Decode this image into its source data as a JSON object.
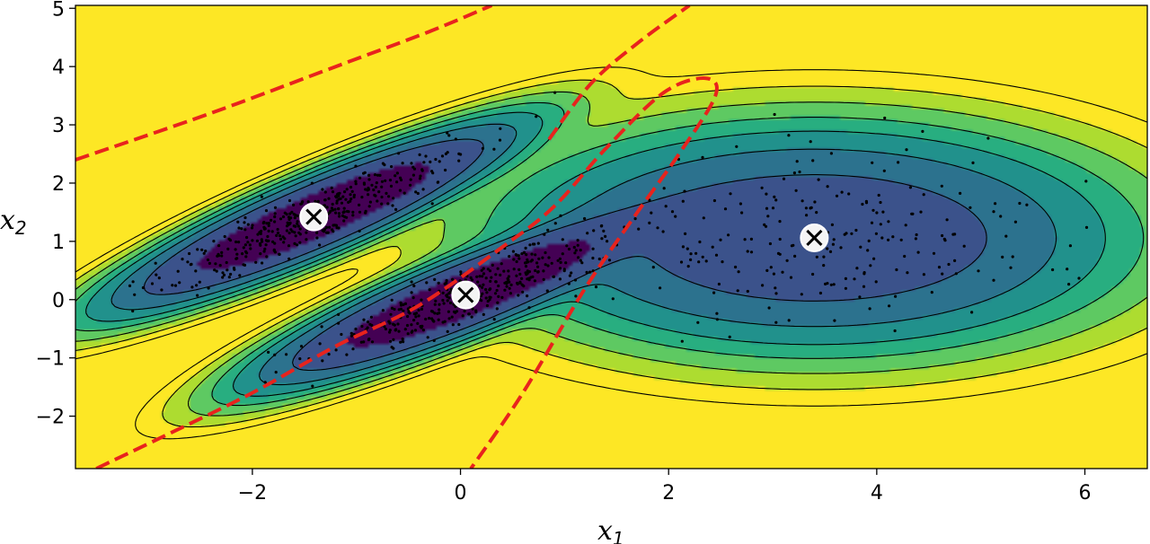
{
  "chart_data": {
    "type": "contour",
    "title": "",
    "xlabel": "x",
    "xlabel_sub": "1",
    "ylabel": "x",
    "ylabel_sub": "2",
    "xlim": [
      -3.7,
      6.6
    ],
    "ylim": [
      -2.9,
      5.05
    ],
    "x_ticks": [
      {
        "value": -2,
        "label": "−2"
      },
      {
        "value": 0,
        "label": "0"
      },
      {
        "value": 2,
        "label": "2"
      },
      {
        "value": 4,
        "label": "4"
      },
      {
        "value": 6,
        "label": "6"
      }
    ],
    "y_ticks": [
      {
        "value": -2,
        "label": "−2"
      },
      {
        "value": -1,
        "label": "−1"
      },
      {
        "value": 0,
        "label": "0"
      },
      {
        "value": 1,
        "label": "1"
      },
      {
        "value": 2,
        "label": "2"
      },
      {
        "value": 3,
        "label": "3"
      },
      {
        "value": 4,
        "label": "4"
      },
      {
        "value": 5,
        "label": "5"
      }
    ],
    "grid": false,
    "colormap": [
      "#440154",
      "#3b528b",
      "#2c728e",
      "#21918c",
      "#28ae80",
      "#5ec962",
      "#addc30",
      "#fde725"
    ],
    "boundary_color": "#e8231d",
    "components": [
      {
        "name": "",
        "mean": [
          -1.41,
          1.42
        ],
        "std": [
          0.9,
          0.2
        ],
        "angle_deg": 38.7,
        "n_points": 390
      },
      {
        "name": "",
        "mean": [
          0.05,
          0.08
        ],
        "std": [
          0.9,
          0.2
        ],
        "angle_deg": 37.1,
        "n_points": 390
      },
      {
        "name": "",
        "mean": [
          3.4,
          1.06
        ],
        "std": [
          1.1,
          0.72
        ],
        "angle_deg": 0,
        "n_points": 230
      }
    ],
    "decision_boundaries": [
      [
        [
          -3.7,
          2.4
        ],
        [
          -2.4,
          3.2
        ],
        [
          -1.2,
          4.0
        ],
        [
          -0.3,
          4.6
        ],
        [
          0.3,
          5.05
        ]
      ],
      [
        [
          -3.5,
          -2.9
        ],
        [
          -2.8,
          -2.3
        ],
        [
          -2.0,
          -1.6
        ],
        [
          -1.2,
          -0.8
        ],
        [
          -0.4,
          -0.1
        ],
        [
          0.4,
          0.9
        ],
        [
          0.9,
          1.6
        ],
        [
          1.4,
          2.6
        ],
        [
          1.95,
          3.55
        ],
        [
          2.35,
          3.8
        ],
        [
          2.45,
          3.5
        ],
        [
          2.1,
          2.5
        ],
        [
          1.7,
          1.5
        ],
        [
          1.2,
          0.2
        ],
        [
          0.6,
          -1.6
        ],
        [
          0.1,
          -2.9
        ]
      ],
      [
        [
          0.85,
          2.75
        ],
        [
          1.25,
          3.7
        ],
        [
          1.7,
          4.4
        ],
        [
          2.2,
          5.05
        ]
      ]
    ]
  }
}
